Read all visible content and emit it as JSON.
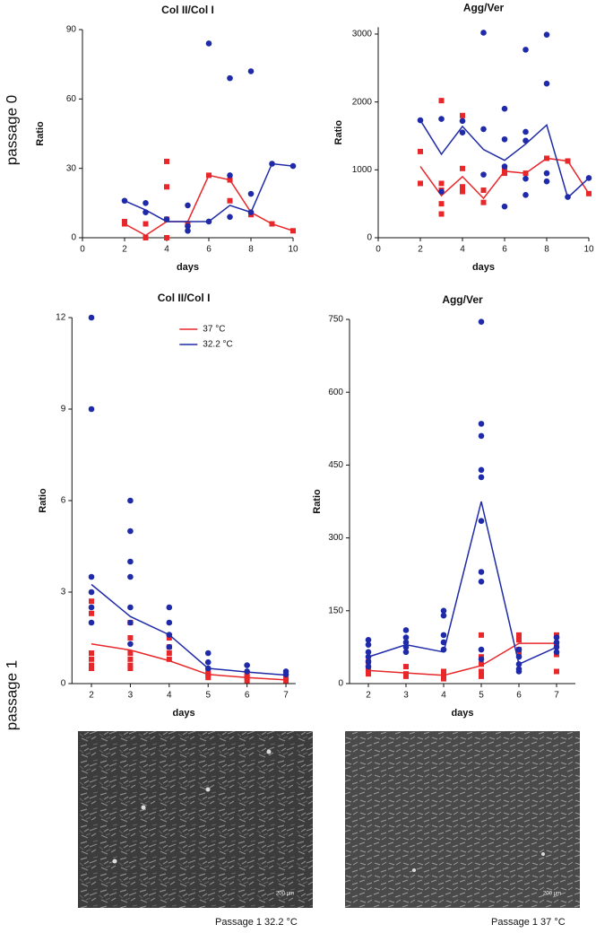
{
  "row_labels": [
    "passage 0",
    "passage 1"
  ],
  "images": [
    {
      "caption": "Passage 1 32.2 °C",
      "scale_bar": "200 µm"
    },
    {
      "caption": "Passage 1 37 °C",
      "scale_bar": "200 µm"
    }
  ],
  "chart_data": [
    {
      "type": "scatter",
      "title": "Col II/Col I",
      "xlabel": "days",
      "ylabel": "Ratio",
      "xlim": [
        0,
        10
      ],
      "xticks": [
        0,
        2,
        4,
        6,
        8,
        10
      ],
      "ylim": [
        0,
        90
      ],
      "yticks": [
        0,
        30,
        60,
        90
      ],
      "series": [
        {
          "color": "#e8272a",
          "marker": "square",
          "x": [
            2,
            2,
            3,
            3,
            4,
            4,
            4,
            4,
            5,
            6,
            7,
            7,
            8,
            9,
            10
          ],
          "y": [
            7,
            6,
            0,
            6,
            33,
            22,
            0,
            8,
            6,
            27,
            25,
            16,
            10,
            6,
            3
          ],
          "mean_x": [
            2,
            3,
            4,
            5,
            6,
            7,
            8,
            9,
            10
          ],
          "mean_y": [
            6,
            1,
            7,
            7,
            27,
            25,
            11,
            6,
            3
          ]
        },
        {
          "color": "#1f2aa8",
          "marker": "circle",
          "x": [
            2,
            3,
            3,
            4,
            5,
            5,
            5,
            6,
            6,
            7,
            7,
            7,
            8,
            8,
            8,
            9,
            10
          ],
          "y": [
            16,
            15,
            11,
            8,
            14,
            5,
            3,
            84,
            7,
            69,
            27,
            9,
            72,
            19,
            11,
            32,
            31
          ],
          "mean_x": [
            2,
            3,
            4,
            5,
            6,
            7,
            8,
            9,
            10
          ],
          "mean_y": [
            16,
            12,
            7,
            7,
            7,
            14,
            11,
            32,
            31
          ]
        }
      ]
    },
    {
      "type": "scatter",
      "title": "Agg/Ver",
      "xlabel": "days",
      "ylabel": "Ratio",
      "xlim": [
        0,
        10
      ],
      "xticks": [
        0,
        2,
        4,
        6,
        8,
        10
      ],
      "ylim": [
        0,
        3100
      ],
      "yticks": [
        0,
        1000,
        2000,
        3000
      ],
      "series": [
        {
          "color": "#e8272a",
          "marker": "square",
          "x": [
            2,
            2,
            3,
            3,
            3,
            3,
            3,
            4,
            4,
            4,
            4,
            5,
            5,
            6,
            6,
            7,
            8,
            9,
            10
          ],
          "y": [
            1270,
            800,
            2020,
            800,
            700,
            500,
            350,
            1800,
            1020,
            750,
            680,
            700,
            520,
            1000,
            950,
            950,
            1170,
            1130,
            650
          ],
          "mean_x": [
            2,
            3,
            4,
            5,
            6,
            7,
            8,
            9,
            10
          ],
          "mean_y": [
            1050,
            620,
            900,
            580,
            980,
            950,
            1170,
            1130,
            650
          ]
        },
        {
          "color": "#1f2aa8",
          "marker": "circle",
          "x": [
            2,
            3,
            3,
            4,
            4,
            5,
            5,
            5,
            6,
            6,
            6,
            6,
            7,
            7,
            7,
            7,
            7,
            8,
            8,
            8,
            8,
            9,
            10
          ],
          "y": [
            1730,
            1750,
            680,
            1720,
            1550,
            3020,
            1600,
            930,
            1900,
            1450,
            1050,
            460,
            2770,
            1560,
            1430,
            870,
            630,
            2990,
            2270,
            950,
            830,
            600,
            880
          ],
          "mean_x": [
            2,
            3,
            4,
            5,
            6,
            7,
            8,
            9,
            10
          ],
          "mean_y": [
            1730,
            1230,
            1640,
            1300,
            1140,
            1380,
            1660,
            590,
            880
          ]
        }
      ]
    },
    {
      "type": "scatter",
      "title": "Col II/Col I",
      "xlabel": "days",
      "ylabel": "Ratio",
      "legend": true,
      "xlim": [
        1.5,
        7.25
      ],
      "xticks": [
        2,
        3,
        4,
        5,
        6,
        7
      ],
      "ylim": [
        0,
        12
      ],
      "yticks": [
        0,
        3,
        6,
        9,
        12
      ],
      "series": [
        {
          "name": "37 °C",
          "color": "#e8272a",
          "marker": "square",
          "x": [
            2,
            2,
            2,
            2,
            2,
            2,
            3,
            3,
            3,
            3,
            3,
            3,
            4,
            4,
            4,
            4,
            5,
            5,
            5,
            6,
            6,
            6,
            7,
            7
          ],
          "y": [
            2.7,
            2.3,
            1.0,
            0.8,
            0.6,
            0.5,
            2.0,
            1.5,
            1.0,
            0.8,
            0.6,
            0.5,
            1.5,
            1.2,
            1.0,
            0.8,
            0.4,
            0.3,
            0.2,
            0.3,
            0.2,
            0.1,
            0.2,
            0.1
          ],
          "mean_x": [
            2,
            3,
            4,
            5,
            6,
            7
          ],
          "mean_y": [
            1.3,
            1.1,
            0.75,
            0.3,
            0.2,
            0.12
          ]
        },
        {
          "name": "32.2 °C",
          "color": "#1f2aa8",
          "marker": "circle",
          "x": [
            2,
            2,
            2,
            2,
            2,
            2,
            3,
            3,
            3,
            3,
            3,
            3,
            3,
            4,
            4,
            4,
            4,
            5,
            5,
            5,
            6,
            6,
            7,
            7
          ],
          "y": [
            12,
            9,
            3.5,
            3.0,
            2.5,
            2.0,
            6,
            5,
            4,
            3.5,
            2.5,
            2.0,
            1.3,
            2.5,
            2.0,
            1.6,
            1.2,
            1.0,
            0.7,
            0.5,
            0.6,
            0.4,
            0.4,
            0.3
          ],
          "mean_x": [
            2,
            3,
            4,
            5,
            6,
            7
          ],
          "mean_y": [
            3.25,
            2.2,
            1.6,
            0.5,
            0.38,
            0.28
          ]
        }
      ]
    },
    {
      "type": "scatter",
      "title": "Agg/Ver",
      "xlabel": "days",
      "ylabel": "Ratio",
      "xlim": [
        1.5,
        7.5
      ],
      "xticks": [
        2,
        3,
        4,
        5,
        6,
        7
      ],
      "ylim": [
        0,
        750
      ],
      "yticks": [
        0,
        150,
        300,
        450,
        600,
        750
      ],
      "series": [
        {
          "color": "#e8272a",
          "marker": "square",
          "x": [
            2,
            2,
            2,
            3,
            3,
            3,
            4,
            4,
            4,
            5,
            5,
            5,
            5,
            5,
            6,
            6,
            6,
            6,
            7,
            7,
            7,
            7
          ],
          "y": [
            45,
            30,
            20,
            35,
            20,
            15,
            25,
            15,
            10,
            100,
            55,
            40,
            25,
            15,
            100,
            90,
            70,
            60,
            100,
            80,
            60,
            25
          ],
          "mean_x": [
            2,
            3,
            4,
            5,
            6,
            7
          ],
          "mean_y": [
            27,
            22,
            17,
            37,
            83,
            83
          ]
        },
        {
          "color": "#1f2aa8",
          "marker": "circle",
          "x": [
            2,
            2,
            2,
            2,
            2,
            2,
            3,
            3,
            3,
            3,
            3,
            4,
            4,
            4,
            4,
            4,
            5,
            5,
            5,
            5,
            5,
            5,
            5,
            5,
            5,
            5,
            6,
            6,
            6,
            6,
            6,
            7,
            7,
            7,
            7
          ],
          "y": [
            90,
            80,
            65,
            55,
            45,
            35,
            110,
            95,
            85,
            75,
            65,
            150,
            140,
            100,
            85,
            70,
            745,
            535,
            510,
            440,
            425,
            335,
            230,
            210,
            70,
            50,
            70,
            55,
            40,
            30,
            25,
            95,
            85,
            75,
            65
          ],
          "mean_x": [
            2,
            3,
            4,
            5,
            6,
            7
          ],
          "mean_y": [
            55,
            80,
            65,
            375,
            40,
            75
          ]
        }
      ]
    }
  ]
}
